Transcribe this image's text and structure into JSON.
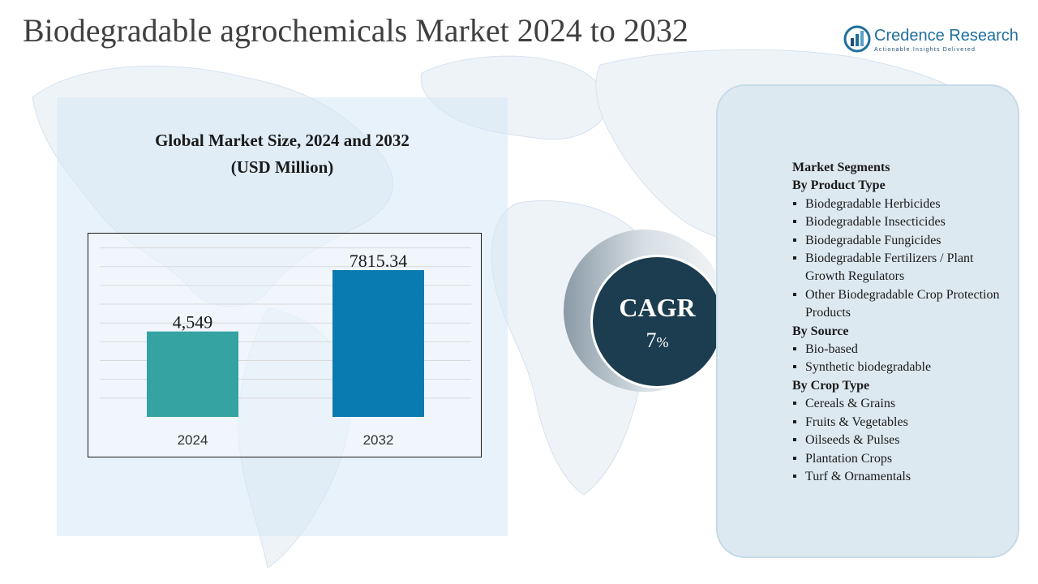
{
  "title": "Biodegradable agrochemicals  Market 2024 to 2032",
  "logo": {
    "name": "Credence Research",
    "tagline": "Actionable Insights Delivered",
    "icon": "bar-chart-globe-logo-icon"
  },
  "chart_title": {
    "line1": "Global Market Size, 2024 and 2032",
    "line2": "(USD Million)"
  },
  "chart_data": {
    "type": "bar",
    "categories": [
      "2024",
      "2032"
    ],
    "values": [
      4549,
      7815.34
    ],
    "value_labels": [
      "4,549",
      "7815.34"
    ],
    "colors": [
      "#36a3a3",
      "#0a7bb0"
    ],
    "title": "Global Market Size, 2024 and 2032 (USD Million)",
    "ylim": [
      0,
      9500
    ],
    "grid": true
  },
  "cagr": {
    "label": "CAGR",
    "value": "7",
    "unit": "%"
  },
  "segments": {
    "heading": "Market Segments",
    "groups": [
      {
        "title": "By Product Type",
        "items": [
          "Biodegradable Herbicides",
          "Biodegradable Insecticides",
          "Biodegradable Fungicides",
          "Biodegradable Fertilizers / Plant Growth Regulators",
          "Other Biodegradable Crop Protection Products"
        ]
      },
      {
        "title": "By Source",
        "items": [
          "Bio-based",
          "Synthetic biodegradable"
        ]
      },
      {
        "title": "By Crop Type",
        "items": [
          "Cereals & Grains",
          "Fruits & Vegetables",
          "Oilseeds & Pulses",
          "Plantation Crops",
          "Turf & Ornamentals"
        ]
      }
    ]
  },
  "colors": {
    "cagr_circle": "#1c3d4f",
    "panel": "#dde9f1",
    "brand": "#1f6f9c"
  }
}
